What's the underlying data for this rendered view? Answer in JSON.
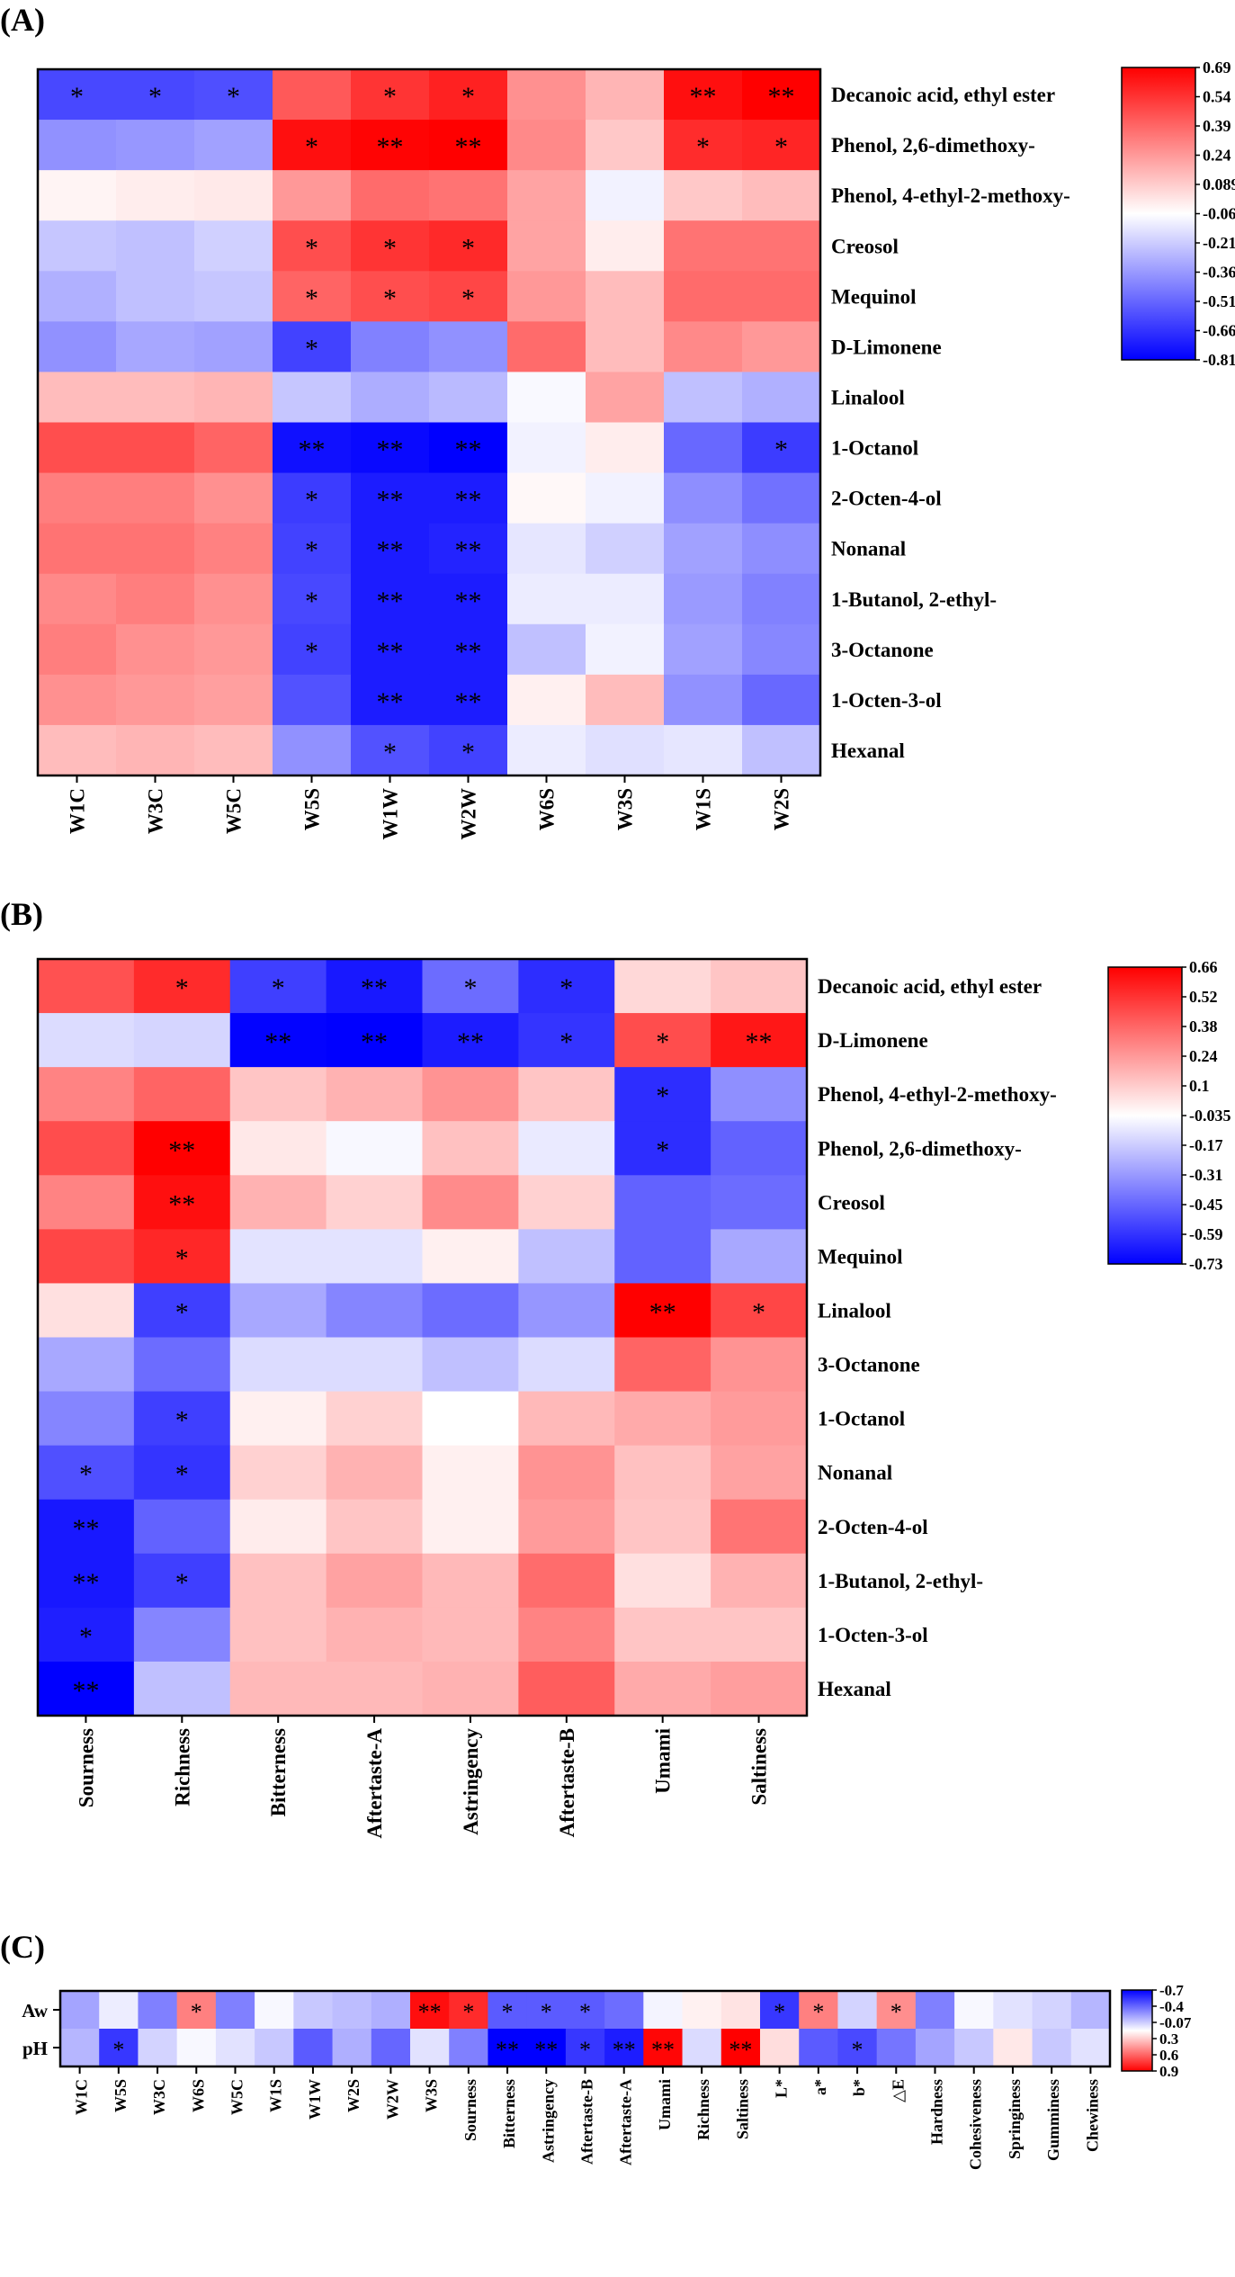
{
  "figure": {
    "panels": [
      "(A)",
      "(B)",
      "(C)"
    ]
  },
  "chart_data": [
    {
      "type": "heatmap",
      "panel": "(A)",
      "title": "",
      "columns": [
        "W1C",
        "W3C",
        "W5C",
        "W5S",
        "W1W",
        "W2W",
        "W6S",
        "W3S",
        "W1S",
        "W2S"
      ],
      "rows": [
        "Decanoic acid, ethyl ester",
        "Phenol, 2,6-dimethoxy-",
        "Phenol, 4-ethyl-2-methoxy-",
        "Creosol",
        "Mequinol",
        "D-Limonene",
        "Linalool",
        "1-Octanol",
        "2-Octen-4-ol",
        "Nonanal",
        "1-Butanol, 2-ethyl-",
        "3-Octanone",
        "1-Octen-3-ol",
        "Hexanal"
      ],
      "values": [
        [
          -0.58,
          -0.58,
          -0.56,
          0.45,
          0.55,
          0.6,
          0.3,
          0.2,
          0.65,
          0.69
        ],
        [
          -0.35,
          -0.33,
          -0.3,
          0.65,
          0.68,
          0.69,
          0.32,
          0.15,
          0.57,
          0.59
        ],
        [
          0.03,
          0.05,
          0.06,
          0.28,
          0.4,
          0.38,
          0.25,
          -0.04,
          0.15,
          0.18
        ],
        [
          -0.18,
          -0.2,
          -0.15,
          0.48,
          0.55,
          0.58,
          0.25,
          0.05,
          0.38,
          0.38
        ],
        [
          -0.25,
          -0.2,
          -0.18,
          0.42,
          0.48,
          0.5,
          0.28,
          0.18,
          0.4,
          0.4
        ],
        [
          -0.35,
          -0.28,
          -0.3,
          -0.6,
          -0.4,
          -0.35,
          0.4,
          0.18,
          0.32,
          0.28
        ],
        [
          0.18,
          0.18,
          0.2,
          -0.18,
          -0.26,
          -0.22,
          -0.02,
          0.25,
          -0.2,
          -0.25
        ],
        [
          0.48,
          0.48,
          0.42,
          -0.76,
          -0.78,
          -0.81,
          -0.04,
          0.05,
          -0.48,
          -0.62
        ],
        [
          0.35,
          0.35,
          0.3,
          -0.62,
          -0.72,
          -0.72,
          0.02,
          -0.04,
          -0.36,
          -0.45
        ],
        [
          0.38,
          0.38,
          0.34,
          -0.6,
          -0.72,
          -0.7,
          -0.08,
          -0.15,
          -0.3,
          -0.36
        ],
        [
          0.32,
          0.35,
          0.3,
          -0.58,
          -0.72,
          -0.72,
          -0.06,
          -0.06,
          -0.32,
          -0.4
        ],
        [
          0.35,
          0.3,
          0.28,
          -0.6,
          -0.72,
          -0.72,
          -0.2,
          -0.04,
          -0.3,
          -0.38
        ],
        [
          0.3,
          0.28,
          0.26,
          -0.55,
          -0.72,
          -0.72,
          0.04,
          0.18,
          -0.35,
          -0.48
        ],
        [
          0.18,
          0.2,
          0.18,
          -0.35,
          -0.55,
          -0.6,
          -0.06,
          -0.1,
          -0.08,
          -0.2
        ]
      ],
      "significance": [
        [
          "*",
          "*",
          "*",
          "",
          "*",
          "*",
          "",
          "",
          "**",
          "**"
        ],
        [
          "",
          "",
          "",
          "*",
          "**",
          "**",
          "",
          "",
          "*",
          "*"
        ],
        [
          "",
          "",
          "",
          "",
          "",
          "",
          "",
          "",
          "",
          ""
        ],
        [
          "",
          "",
          "",
          "*",
          "*",
          "*",
          "",
          "",
          "",
          ""
        ],
        [
          "",
          "",
          "",
          "*",
          "*",
          "*",
          "",
          "",
          "",
          ""
        ],
        [
          "",
          "",
          "",
          "*",
          "",
          "",
          "",
          "",
          "",
          ""
        ],
        [
          "",
          "",
          "",
          "",
          "",
          "",
          "",
          "",
          "",
          ""
        ],
        [
          "",
          "",
          "",
          "**",
          "**",
          "**",
          "",
          "",
          "",
          "*"
        ],
        [
          "",
          "",
          "",
          "*",
          "**",
          "**",
          "",
          "",
          "",
          ""
        ],
        [
          "",
          "",
          "",
          "*",
          "**",
          "**",
          "",
          "",
          "",
          ""
        ],
        [
          "",
          "",
          "",
          "*",
          "**",
          "**",
          "",
          "",
          "",
          ""
        ],
        [
          "",
          "",
          "",
          "*",
          "**",
          "**",
          "",
          "",
          "",
          ""
        ],
        [
          "",
          "",
          "",
          "",
          "**",
          "**",
          "",
          "",
          "",
          ""
        ],
        [
          "",
          "",
          "",
          "",
          "*",
          "*",
          "",
          "",
          "",
          ""
        ]
      ],
      "vmin": -0.81,
      "vmax": 0.69,
      "colorbar_ticks": [
        "0.69",
        "0.54",
        "0.39",
        "0.24",
        "0.089",
        "-0.06",
        "-0.21",
        "-0.36",
        "-0.51",
        "-0.66",
        "-0.81"
      ]
    },
    {
      "type": "heatmap",
      "panel": "(B)",
      "title": "",
      "columns": [
        "Sourness",
        "Richness",
        "Bitterness",
        "Aftertaste-A",
        "Astringency",
        "Aftertaste-B",
        "Umami",
        "Saltiness"
      ],
      "rows": [
        "Decanoic acid, ethyl ester",
        "D-Limonene",
        "Phenol, 4-ethyl-2-methoxy-",
        "Phenol, 2,6-dimethoxy-",
        "Creosol",
        "Mequinol",
        "Linalool",
        "3-Octanone",
        "1-Octanol",
        "Nonanal",
        "2-Octen-4-ol",
        "1-Butanol, 2-ethyl-",
        "1-Octen-3-ol",
        "Hexanal"
      ],
      "values": [
        [
          0.45,
          0.55,
          -0.55,
          -0.66,
          -0.42,
          -0.6,
          0.1,
          0.15
        ],
        [
          -0.1,
          -0.12,
          -0.72,
          -0.73,
          -0.65,
          -0.58,
          0.46,
          0.6
        ],
        [
          0.32,
          0.4,
          0.15,
          0.2,
          0.28,
          0.15,
          -0.6,
          -0.32
        ],
        [
          0.46,
          0.66,
          0.06,
          -0.02,
          0.16,
          -0.06,
          -0.6,
          -0.45
        ],
        [
          0.32,
          0.62,
          0.2,
          0.12,
          0.3,
          0.12,
          -0.45,
          -0.42
        ],
        [
          0.48,
          0.56,
          -0.08,
          -0.08,
          0.04,
          -0.18,
          -0.45,
          -0.25
        ],
        [
          0.08,
          -0.55,
          -0.25,
          -0.35,
          -0.42,
          -0.3,
          0.66,
          0.48
        ],
        [
          -0.25,
          -0.42,
          -0.1,
          -0.1,
          -0.18,
          -0.1,
          0.4,
          0.28
        ],
        [
          -0.35,
          -0.55,
          0.04,
          0.12,
          0.0,
          0.18,
          0.22,
          0.26
        ],
        [
          -0.5,
          -0.58,
          0.12,
          0.2,
          0.04,
          0.28,
          0.16,
          0.24
        ],
        [
          -0.66,
          -0.45,
          0.05,
          0.15,
          0.04,
          0.26,
          0.15,
          0.36
        ],
        [
          -0.66,
          -0.55,
          0.16,
          0.24,
          0.18,
          0.38,
          0.08,
          0.2
        ],
        [
          -0.64,
          -0.35,
          0.16,
          0.2,
          0.18,
          0.32,
          0.15,
          0.15
        ],
        [
          -0.73,
          -0.18,
          0.18,
          0.18,
          0.2,
          0.42,
          0.22,
          0.25
        ]
      ],
      "significance": [
        [
          "",
          "*",
          "*",
          "**",
          "*",
          "*",
          "",
          ""
        ],
        [
          "",
          "",
          "**",
          "**",
          "**",
          "*",
          "*",
          "**"
        ],
        [
          "",
          "",
          "",
          "",
          "",
          "",
          "*",
          ""
        ],
        [
          "",
          "**",
          "",
          "",
          "",
          "",
          "*",
          ""
        ],
        [
          "",
          "**",
          "",
          "",
          "",
          "",
          "",
          ""
        ],
        [
          "",
          "*",
          "",
          "",
          "",
          "",
          "",
          ""
        ],
        [
          "",
          "*",
          "",
          "",
          "",
          "",
          "**",
          "*"
        ],
        [
          "",
          "",
          "",
          "",
          "",
          "",
          "",
          ""
        ],
        [
          "",
          "*",
          "",
          "",
          "",
          "",
          "",
          ""
        ],
        [
          "*",
          "*",
          "",
          "",
          "",
          "",
          "",
          ""
        ],
        [
          "**",
          "",
          "",
          "",
          "",
          "",
          "",
          ""
        ],
        [
          "**",
          "*",
          "",
          "",
          "",
          "",
          "",
          ""
        ],
        [
          "*",
          "",
          "",
          "",
          "",
          "",
          "",
          ""
        ],
        [
          "**",
          "",
          "",
          "",
          "",
          "",
          "",
          ""
        ]
      ],
      "vmin": -0.73,
      "vmax": 0.66,
      "colorbar_ticks": [
        "0.66",
        "0.52",
        "0.38",
        "0.24",
        "0.1",
        "-0.035",
        "-0.17",
        "-0.31",
        "-0.45",
        "-0.59",
        "-0.73"
      ]
    },
    {
      "type": "heatmap",
      "panel": "(C)",
      "title": "",
      "note": "colorbar is reversed: blue = -0.7 (top), red = 0.9 (bottom)",
      "columns": [
        "W1C",
        "W5S",
        "W3C",
        "W6S",
        "W5C",
        "W1S",
        "W1W",
        "W2S",
        "W2W",
        "W3S",
        "Sourness",
        "Bitterness",
        "Astringency",
        "Aftertaste-B",
        "Aftertaste-A",
        "Umami",
        "Richness",
        "Saltiness",
        "L*",
        "a*",
        "b*",
        "△E",
        "Hardness",
        "Cohesiveness",
        "Springiness",
        "Gumminess",
        "Chewiness"
      ],
      "rows": [
        "Aw",
        "pH"
      ],
      "values": [
        [
          -0.25,
          -0.05,
          -0.35,
          0.45,
          -0.35,
          -0.02,
          -0.15,
          -0.18,
          -0.22,
          0.85,
          0.75,
          -0.45,
          -0.45,
          -0.45,
          -0.4,
          -0.03,
          0.05,
          0.1,
          -0.55,
          0.45,
          -0.12,
          0.4,
          -0.35,
          -0.02,
          -0.08,
          -0.12,
          -0.2
        ],
        [
          -0.2,
          -0.55,
          -0.12,
          -0.02,
          -0.08,
          -0.15,
          -0.45,
          -0.22,
          -0.42,
          -0.08,
          -0.35,
          -0.7,
          -0.7,
          -0.55,
          -0.62,
          0.88,
          -0.1,
          0.9,
          0.12,
          -0.45,
          -0.5,
          -0.38,
          -0.25,
          -0.15,
          0.08,
          -0.15,
          -0.08
        ]
      ],
      "significance": [
        [
          "",
          "",
          "",
          "*",
          "",
          "",
          "",
          "",
          "",
          "**",
          "*",
          "*",
          "*",
          "*",
          "",
          "",
          "",
          "",
          "*",
          "*",
          "",
          "*",
          "",
          "",
          "",
          "",
          ""
        ],
        [
          "",
          "*",
          "",
          "",
          "",
          "",
          "",
          "",
          "",
          "",
          "",
          "**",
          "**",
          "*",
          "**",
          "**",
          "",
          "**",
          "",
          "",
          "*",
          "",
          "",
          "",
          "",
          "",
          ""
        ]
      ],
      "vmin": -0.7,
      "vmax": 0.9,
      "colorbar_ticks": [
        "-0.7",
        "-0.4",
        "-0.07",
        "0.3",
        "0.6",
        "0.9"
      ]
    }
  ]
}
